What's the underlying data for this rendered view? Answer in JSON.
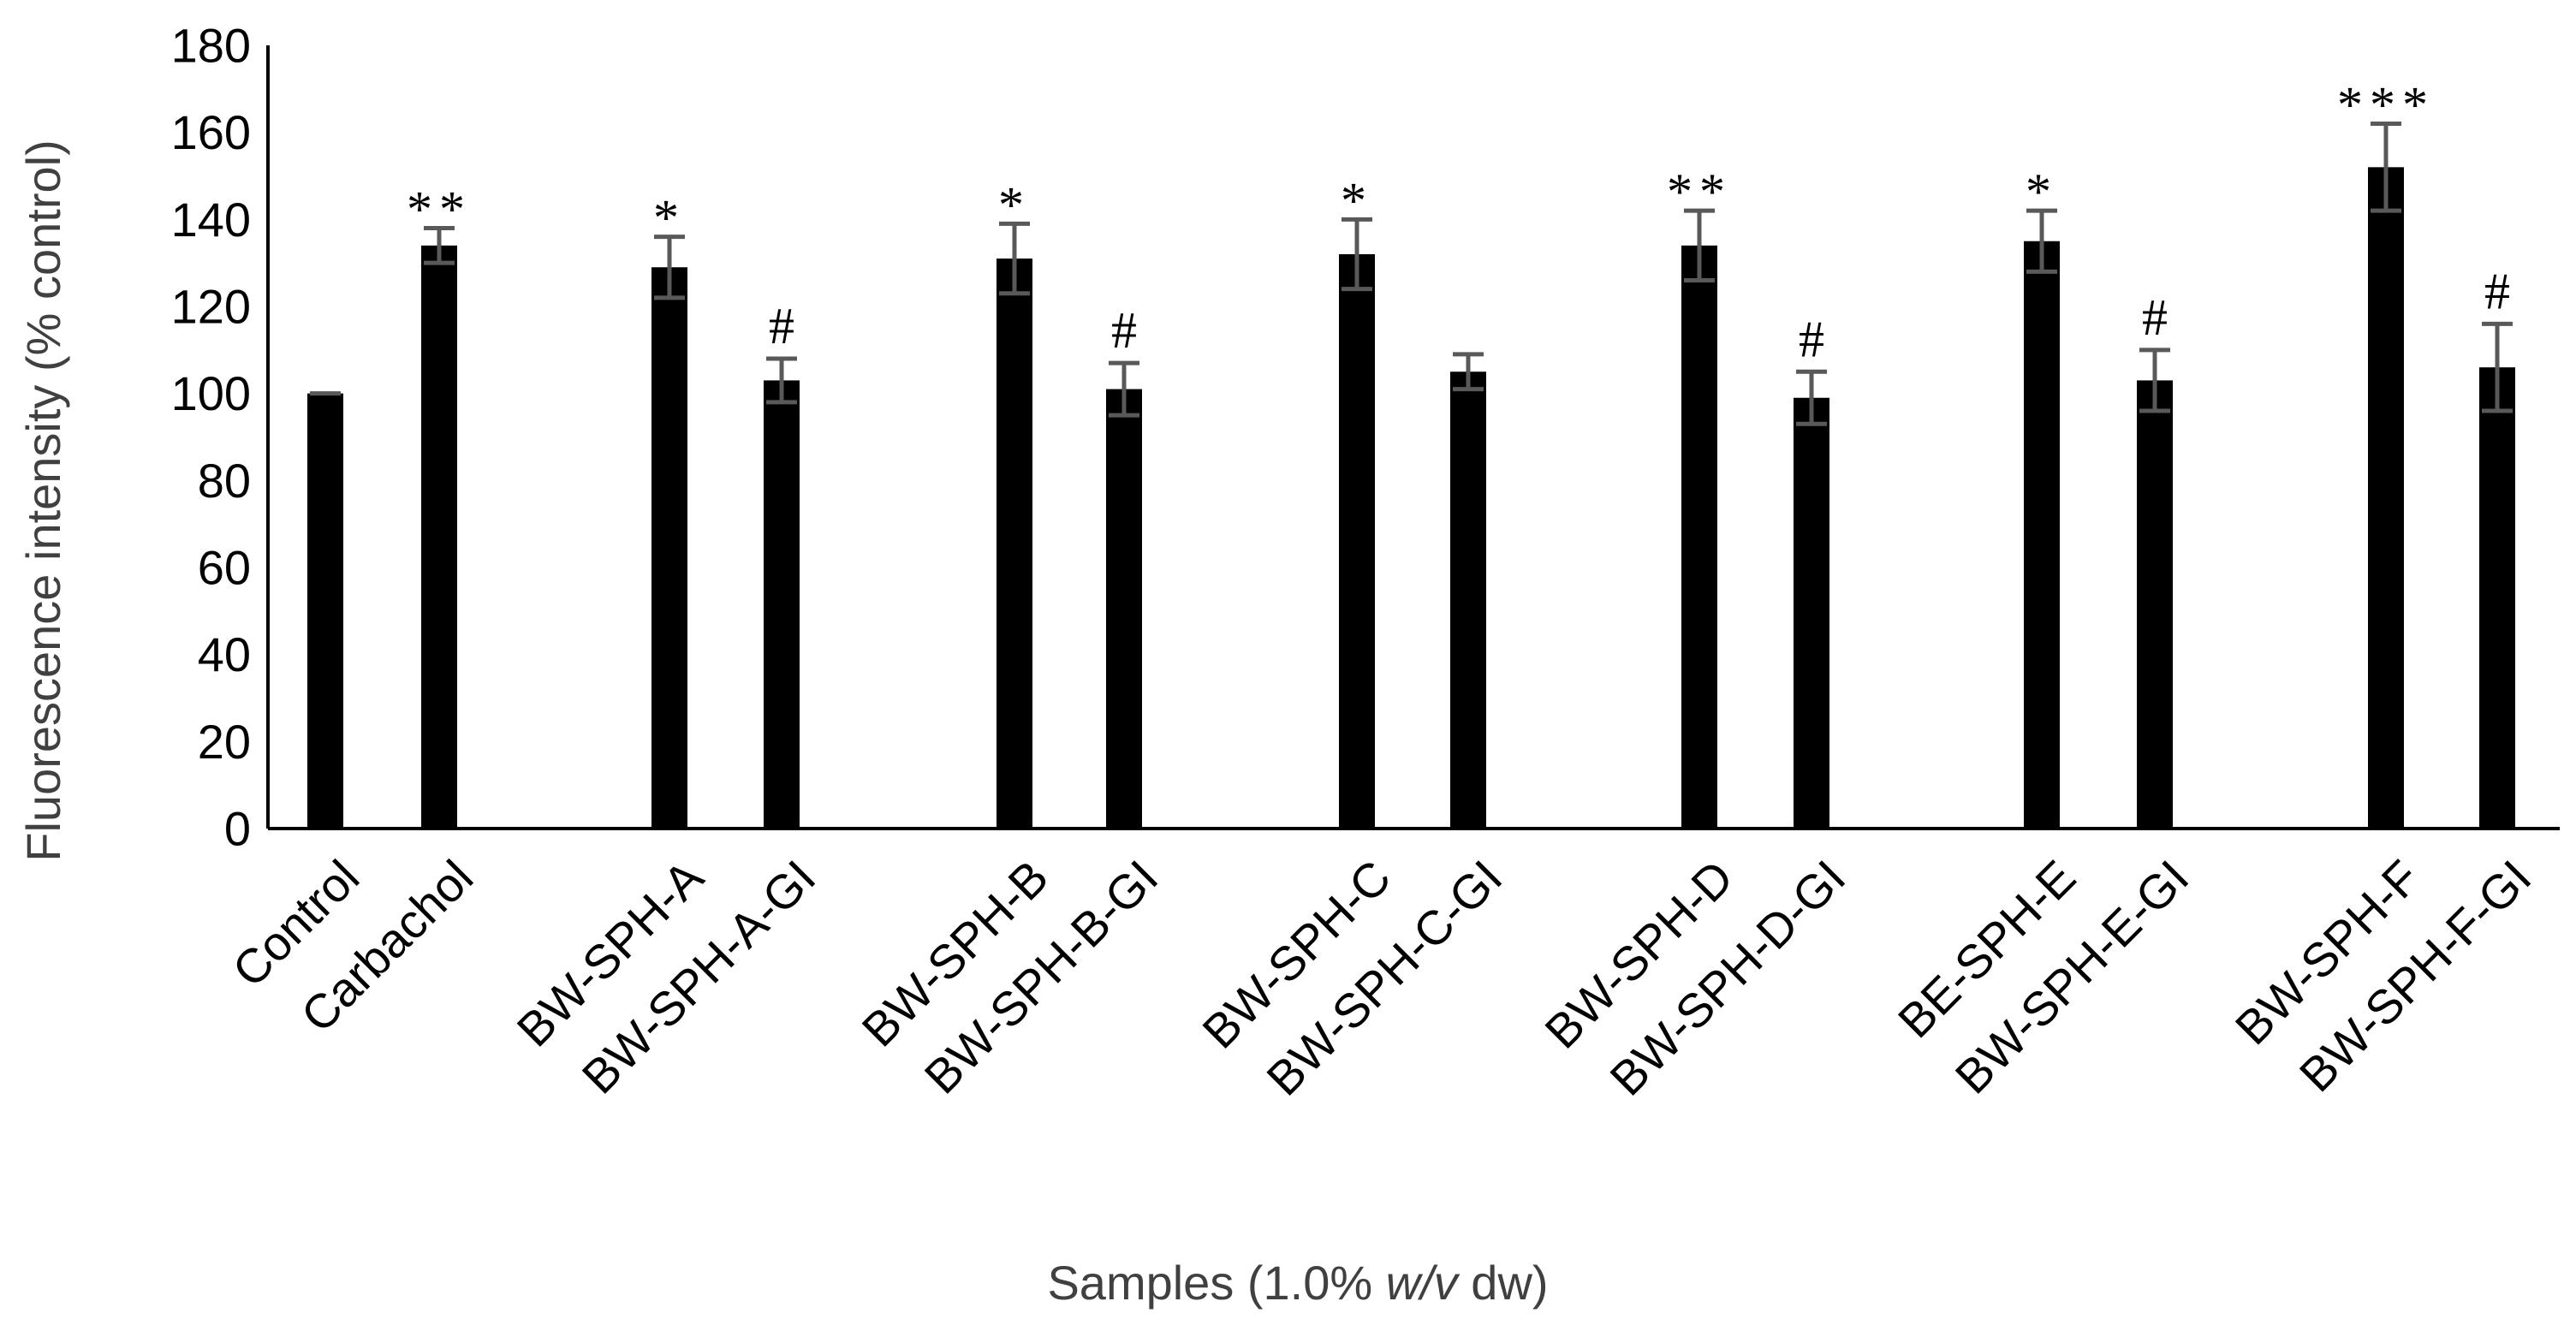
{
  "chart_data": {
    "type": "bar",
    "title": "",
    "xlabel": "Samples (1.0% w/v dw)",
    "xlabel_parts": [
      "Samples (1.0% ",
      "w/v",
      " dw)"
    ],
    "ylabel": "Fluorescence intensity (% control)",
    "ylim": [
      0,
      180
    ],
    "ytick_step": 20,
    "yticks": [
      "0",
      "20",
      "40",
      "60",
      "80",
      "100",
      "120",
      "140",
      "160",
      "180"
    ],
    "grid": false,
    "legend": "none",
    "categories": [
      "Control",
      "Carbachol",
      "BW-SPH-A",
      "BW-SPH-A-GI",
      "BW-SPH-B",
      "BW-SPH-B-GI",
      "BW-SPH-C",
      "BW-SPH-C-GI",
      "BW-SPH-D",
      "BW-SPH-D-GI",
      "BE-SPH-E",
      "BW-SPH-E-GI",
      "BW-SPH-F",
      "BW-SPH-F-GI"
    ],
    "values": [
      100,
      134,
      129,
      103,
      131,
      101,
      132,
      105,
      134,
      99,
      135,
      103,
      152,
      106
    ],
    "errors": [
      0,
      4,
      7,
      5,
      8,
      6,
      8,
      4,
      8,
      6,
      7,
      7,
      10,
      10
    ],
    "annotations": [
      "",
      "**",
      "*",
      "#",
      "*",
      "#",
      "*",
      "",
      "**",
      "#",
      "*",
      "#",
      "***",
      "#"
    ],
    "colors": {
      "bar": "#000000",
      "error_bar": "#595959",
      "axis": "#000000"
    }
  }
}
